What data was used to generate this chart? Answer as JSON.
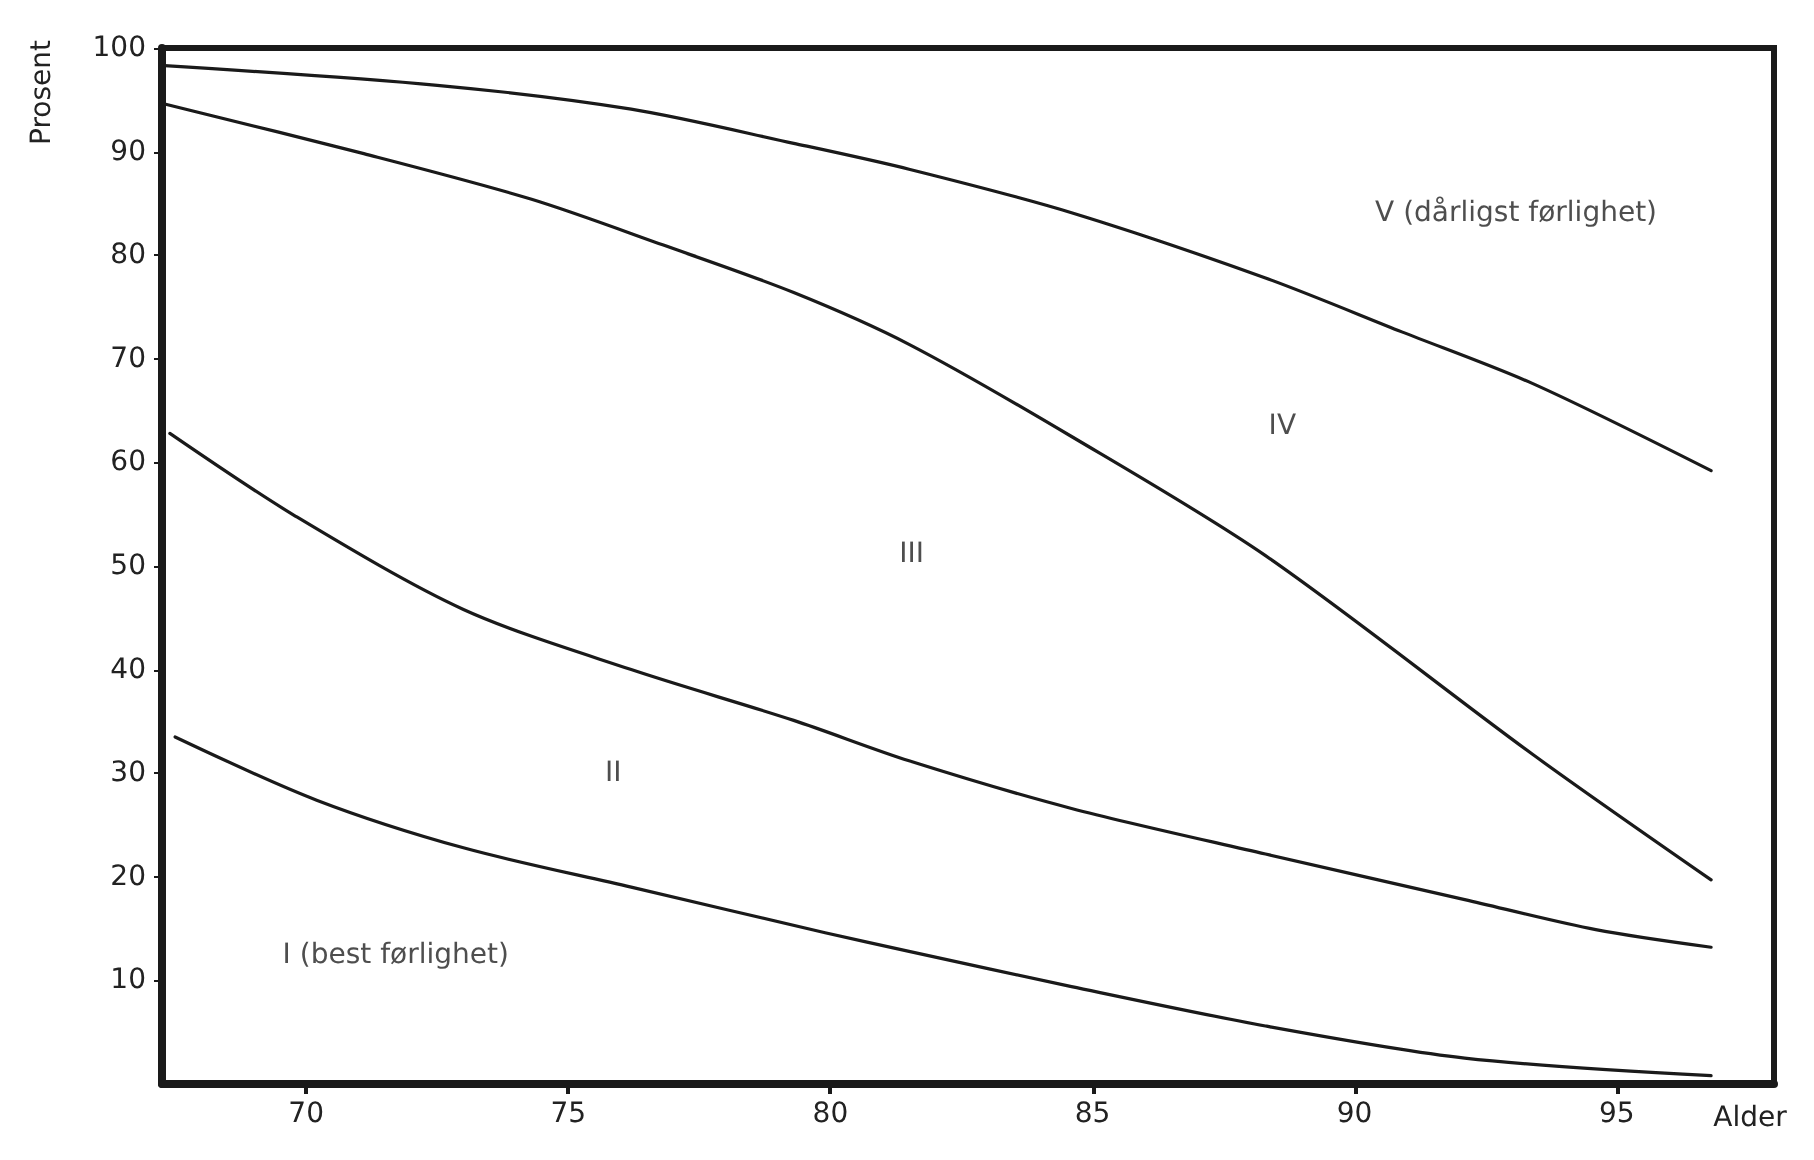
{
  "chart_data": {
    "type": "line",
    "xlabel": "Alder",
    "ylabel": "Prosent",
    "xlim": [
      67.25,
      98
    ],
    "xticks": [
      70,
      75,
      80,
      85,
      90,
      95
    ],
    "ylim": [
      0,
      100
    ],
    "yticks": [
      10,
      20,
      30,
      40,
      50,
      60,
      70,
      80,
      90,
      100
    ],
    "grid": false,
    "marker": "none",
    "line_style": "solid",
    "series": [
      {
        "color": "#1a1a1a",
        "x": [
          67.3,
          72.5,
          76.2,
          79.3,
          81.5,
          84.6,
          88.3,
          90.9,
          93.4,
          96.8
        ],
        "values": [
          98.3,
          96.4,
          94.1,
          90.8,
          88.3,
          84.1,
          77.8,
          72.6,
          67.6,
          59.2
        ]
      },
      {
        "color": "#1a1a1a",
        "x": [
          67.3,
          71.1,
          74.3,
          76.8,
          79.3,
          81.5,
          84.6,
          88.3,
          93.4,
          96.8
        ],
        "values": [
          94.6,
          89.8,
          85.4,
          81.0,
          76.4,
          71.4,
          62.5,
          51.0,
          31.8,
          19.7
        ]
      },
      {
        "color": "#1a1a1a",
        "x": [
          67.4,
          69.8,
          73.0,
          76.2,
          79.3,
          81.5,
          84.6,
          88.3,
          92.1,
          94.6,
          96.8
        ],
        "values": [
          62.8,
          54.8,
          45.8,
          40.0,
          35.1,
          31.2,
          26.6,
          22.2,
          17.8,
          14.9,
          13.2
        ]
      },
      {
        "color": "#1a1a1a",
        "x": [
          67.5,
          70.2,
          73.0,
          76.2,
          79.9,
          81.5,
          84.6,
          88.3,
          92.1,
          96.8
        ],
        "values": [
          33.5,
          27.4,
          22.8,
          19.0,
          14.6,
          12.8,
          9.4,
          5.6,
          2.5,
          0.8
        ]
      }
    ],
    "annotations": [
      "I (best førlighet)",
      "II",
      "III",
      "IV",
      "V (dårligst førlighet)"
    ]
  }
}
